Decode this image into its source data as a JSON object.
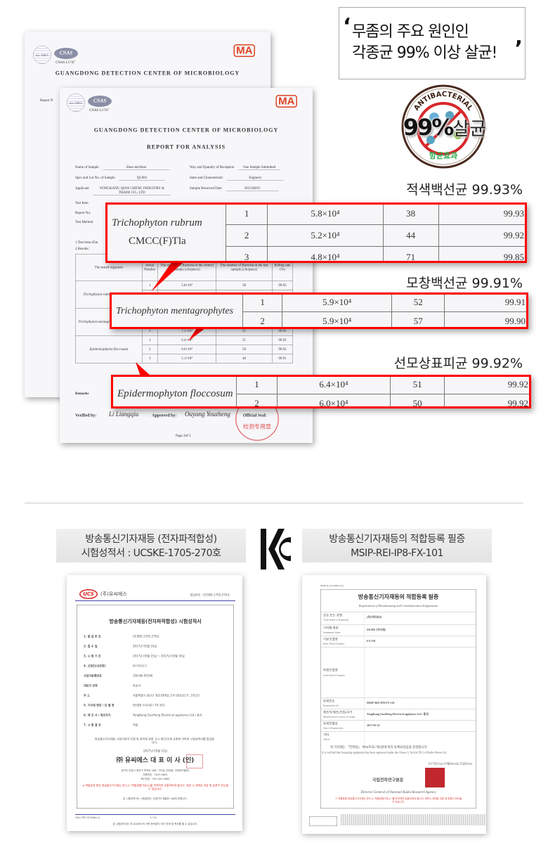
{
  "quote": {
    "line1": "무좀의 주요 원인인",
    "line2": "각종균 99% 이상 살균!",
    "open_mark": "‘",
    "close_mark": "’"
  },
  "badge": {
    "arc_text": "ANTIBACTERIAL",
    "main": "99%",
    "main_suffix": "살균",
    "bottom": "항균효과",
    "accent": "#d8282a",
    "green": "#2aa84a"
  },
  "report_back": {
    "org": "GUANGDONG DETECTION CENTER OF MICROBIOLOGY",
    "cnas": "CNAS",
    "cnas_no": "CNAS L1747",
    "ilac": "ilac-MRA",
    "ma": "MA",
    "report_label": "Report N"
  },
  "report_front": {
    "org": "GUANGDONG DETECTION CENTER OF MICROBIOLOGY",
    "title": "REPORT FOR ANALYSIS",
    "cnas": "CNAS",
    "cnas_no": "CNAS L1747",
    "ilac": "ilac-MRA",
    "ma": "MA",
    "fields": [
      {
        "label": "Name of Sample",
        "value": "Shoe sterilizer"
      },
      {
        "label": "Way and Quantity of Reception",
        "value": "One Sample Submitted"
      },
      {
        "label": "Spec and Lot No. of Sample",
        "value": "QC001"
      },
      {
        "label": "State and Characteristic",
        "value": "Enginery"
      },
      {
        "label": "Applicant",
        "value": "YONGKANG QIAN CHENG INDUSTRY & TRADE CO., LTD"
      },
      {
        "label": "Sample Received Date",
        "value": "2015/08/01"
      },
      {
        "label": "Test Item",
        "value": ""
      },
      {
        "label": "Report No.",
        "value": ""
      },
      {
        "label": "Test Method",
        "value": ""
      }
    ],
    "test_time": "1.Test time:45m",
    "results_label": "2.Results:",
    "headers": [
      "The tested organism",
      "Serial Number",
      "The number of Bacteria in the control sample (cfu/piece)",
      "The number of Bacteria in the test sample (cfu/piece)",
      "Killing rate (%)"
    ],
    "rows": [
      {
        "org": "Trichophyton rubrum CMCC(F)T1a",
        "serial": "1",
        "control": "5.8×10⁴",
        "test": "38",
        "rate": "99.93"
      },
      {
        "org": "",
        "serial": "2",
        "control": "5.2×10⁴",
        "test": "44",
        "rate": "99.92"
      },
      {
        "org": "",
        "serial": "3",
        "control": "4.8×10⁴",
        "test": "71",
        "rate": "99.85"
      },
      {
        "org": "Trichophyton mentagrophytes CMCC(F)T5",
        "serial": "1",
        "control": "5.9×10⁴",
        "test": "52",
        "rate": "99.91"
      },
      {
        "org": "",
        "serial": "2",
        "control": "5.9×10⁴",
        "test": "57",
        "rate": "99.90"
      },
      {
        "org": "",
        "serial": "3",
        "control": "7.1×10⁴",
        "test": "51",
        "rate": "99.93"
      },
      {
        "org": "Epidermophyton floccosum",
        "serial": "1",
        "control": "6.4×10⁴",
        "test": "51",
        "rate": "99.92"
      },
      {
        "org": "",
        "serial": "2",
        "control": "6.0×10⁴",
        "test": "50",
        "rate": "99.92"
      },
      {
        "org": "",
        "serial": "3",
        "control": "5.1×10⁴",
        "test": "48",
        "rate": "99.91"
      }
    ],
    "remarks": "Remarks",
    "verified_label": "Verified by:",
    "verified_sig": "Li Liangqiu",
    "approved_label": "Approved by:",
    "approved_sig": "Ouyang Youzheng",
    "seal_label": "Official Seal:",
    "seal_text": "检测专用章",
    "page": "Page 2of 3"
  },
  "highlights": [
    {
      "stat": "적색백선균 99.93%",
      "organism": "Trichophyton rubrum",
      "strain": "CMCC(F)Tla",
      "rows": [
        [
          "1",
          "5.8×10⁴",
          "38",
          "99.93"
        ],
        [
          "2",
          "5.2×10⁴",
          "44",
          "99.92"
        ],
        [
          "3",
          "4.8×10⁴",
          "71",
          "99.85"
        ]
      ]
    },
    {
      "stat": "모창백선균 99.91%",
      "organism": "Trichophyton mentagrophytes",
      "strain": "CMCC(F)T5",
      "rows": [
        [
          "1",
          "5.9×10⁴",
          "52",
          "99.91"
        ],
        [
          "2",
          "5.9×10⁴",
          "57",
          "99.90"
        ]
      ]
    },
    {
      "stat": "선모상표피균 99.92%",
      "organism": "Epidermophyton floccosum",
      "strain": "",
      "rows": [
        [
          "1",
          "6.4×10⁴",
          "51",
          "99.92"
        ],
        [
          "2",
          "6.0×10⁴",
          "50",
          "99.92"
        ]
      ]
    }
  ],
  "captions": {
    "left_line1": "방송통신기자재등 (전자파적합성)",
    "left_line2": "시험성적서 : UCSKE-1705-270호",
    "right_line1": "방송통신기자재등의 적합등록 필증",
    "right_line2": "MSIP-REI-IP8-FX-101",
    "kc_logo": "KC"
  },
  "emc_report": {
    "company": "(주)유씨에스",
    "logo": "UCS",
    "issue_no": "발급번호 : UCSKE-1705-270호",
    "title": "방송통신기자재등(전자파적합성) 시험성적서",
    "items": [
      {
        "label": "1. 발 급 번 호",
        "value": "UCSKE-1705-270호"
      },
      {
        "label": "2. 접 수 일",
        "value": "2017년 05월 10일"
      },
      {
        "label": "3. 시 험 기 간",
        "value": "2017년 05월 15일 ~ 2017년 05월 16일"
      },
      {
        "label": "4. 신청인(상호명)",
        "value": "㈜ 아이조크"
      },
      {
        "label": "사업자등록번호",
        "value": "106-86-92546"
      },
      {
        "label": "대표자 성명",
        "value": "한승자"
      },
      {
        "label": "주 소",
        "value": "서울특별시 용산구 청호로69길 3-9 (원효로1가, 101호)"
      },
      {
        "label": "5. 기자재 명칭 / 모 델 명",
        "value": "ISUDE (이수데) / FX-101"
      },
      {
        "label": "6. 제 조 사 / 제조국가",
        "value": "YongKang GuoHeng Electrical appliance Ltd / 중국"
      },
      {
        "label": "7. 시 험 결 과",
        "value": "적합"
      }
    ],
    "notice": "방송통신기자재등 시험기관의 지정 및 관리에 관한 고시 제13조에 규정에 의하여 시험성적서를 발급합니다.",
    "date": "2017년 05월 22일",
    "signer": "㈜ 유씨에스 대 표 이 사 (인)",
    "address": "경기도 안양시 동안구 학의로 268, 702호 (관양동, 안양메가밸리)",
    "phone": "전화번호 : 1833-5681",
    "fax": "팩스번호 : 031-420-5685",
    "warning": "※ 적합등록 받은 방송통신기자재는 반드시 \"적합성평가표시\"를 부착하여 유통하여야 합니다. 위반 시 과태료 처분 및 등록이 취소될 수 있습니다.",
    "footnote": "본 시험성적서는 시험결과는 신청인이 제출한 시료에 한합니다.",
    "form_no": "UQC-TRF-013(Rev.1)",
    "page": "1 / 51",
    "bottom_note": "본 시험성적서는 ㈜ 유씨에스의 서면 동의없이 부단 전재 및 복사를 할 수 없습니다."
  },
  "registration": {
    "form": "MSIP (Lab) TRBA (01)",
    "title": "방송통신기자재등의 적합등록 필증",
    "subtitle": "Registration of Broadcasting and Communication Equipments",
    "rows": [
      {
        "label": "상호 또는 성명",
        "sub": "Trade Name or Registrant",
        "value": "(주)아이조크"
      },
      {
        "label": "기자재 명칭",
        "sub": "Equipment Name",
        "value": "ISUDE (이수데)"
      },
      {
        "label": "기본모델명",
        "sub": "Basic Model Number",
        "value": "FX-101"
      },
      {
        "label": "파생모델명",
        "sub": "Series Model Number",
        "value": ""
      },
      {
        "label": "등록번호",
        "sub": "Registration No.",
        "value": "MSIP-REI-IP8-FX-101"
      },
      {
        "label": "제조자/제조(조립)국가",
        "sub": "Manufacturer/Country of Origin",
        "value": "YongKang GuoHeng Electrical appliance Ltd / 중국"
      },
      {
        "label": "등록연월일",
        "sub": "Date of Registration",
        "value": "2017-05-25"
      },
      {
        "label": "기타",
        "sub": "Others",
        "value": ""
      }
    ],
    "statement_ko": "위 기자재는 「전파법」 제58조의2 제3항에 따라 등록되었음을 증명합니다.",
    "statement_en": "It is verified that foregoing equipment has been registered under the Clause 3, Article 58-2 of Radio Waves Act.",
    "date": "2017년(Year) 05월(Month) 25일(Date)",
    "agency_ko": "국립전파연구원장",
    "agency_en": "Director General of National Radio Research Agency",
    "warning": "※ 적합등록 방송통신기자재는 반드시 \"적합성평가표시\" 를 부착하여 유통하여야 합니다. 위반시 과태료 처분 및 등록이 취소될 수 있습니다."
  }
}
